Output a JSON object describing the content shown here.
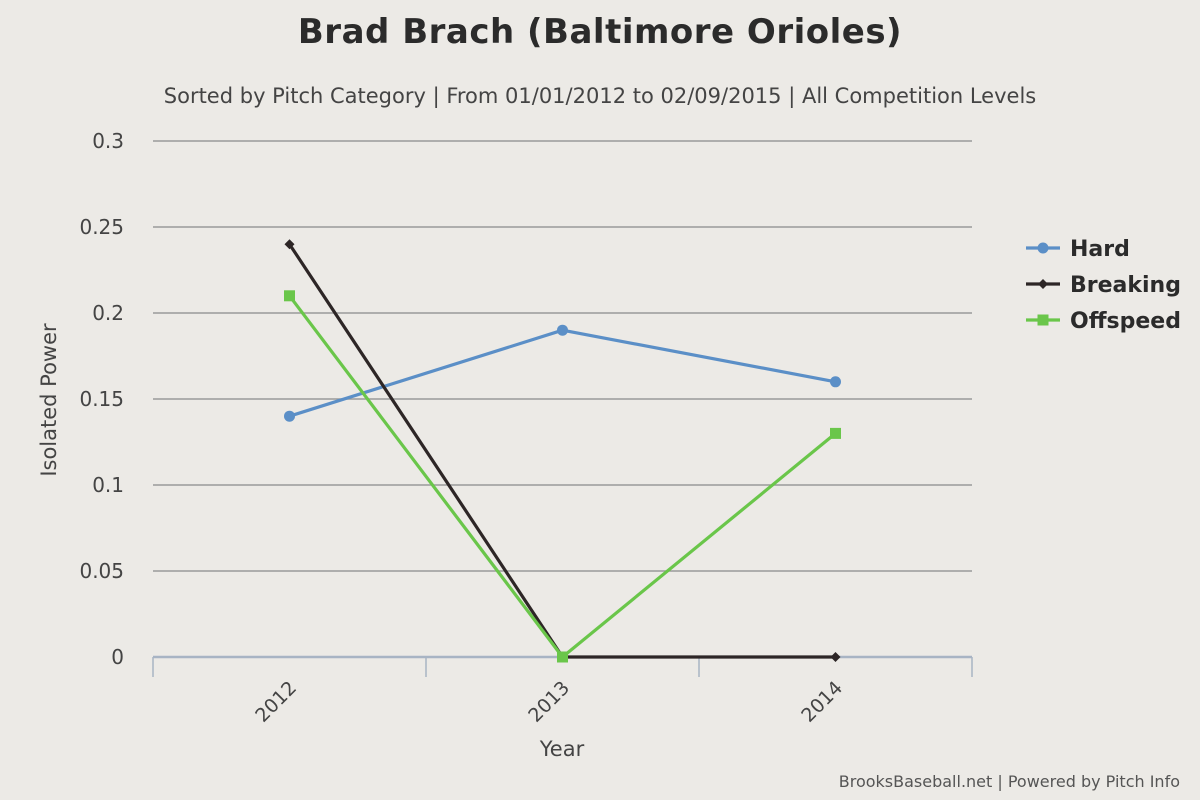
{
  "chart_data": {
    "type": "line",
    "title": "Brad Brach (Baltimore Orioles)",
    "subtitle": "Sorted by Pitch Category | From 01/01/2012 to 02/09/2015 | All Competition Levels",
    "xlabel": "Year",
    "ylabel": "Isolated Power",
    "categories": [
      "2012",
      "2013",
      "2014"
    ],
    "ylim": [
      0,
      0.3
    ],
    "yticks": [
      "0",
      "0.05",
      "0.1",
      "0.15",
      "0.2",
      "0.25",
      "0.3"
    ],
    "grid": true,
    "legend_position": "right",
    "series": [
      {
        "name": "Hard",
        "color": "#5b8fc7",
        "marker": "circle",
        "values": [
          0.14,
          0.19,
          0.16
        ]
      },
      {
        "name": "Breaking",
        "color": "#2d2626",
        "marker": "diamond",
        "values": [
          0.24,
          0.0,
          0.0
        ]
      },
      {
        "name": "Offspeed",
        "color": "#6ac64a",
        "marker": "square",
        "values": [
          0.21,
          0.0,
          0.13
        ]
      }
    ]
  },
  "credits": "BrooksBaseball.net | Powered by Pitch Info"
}
